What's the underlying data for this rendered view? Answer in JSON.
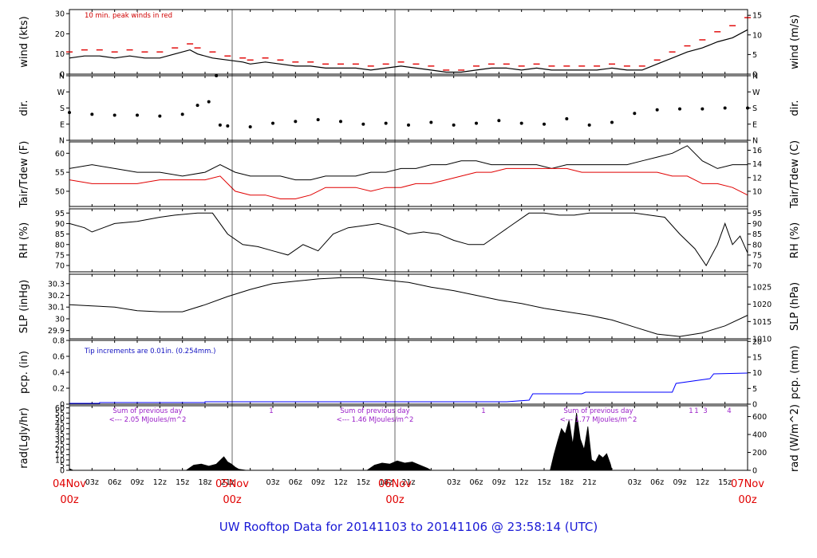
{
  "title": "UW Rooftop Data for 20141103  to  20141106 @ 23:58:14  (UTC)",
  "x_axis": {
    "hour_ticks": [
      "03z",
      "06z",
      "09z",
      "12z",
      "15z",
      "18z",
      "21z"
    ],
    "day_labels": [
      {
        "day": "04Nov",
        "time": "00z"
      },
      {
        "day": "05Nov",
        "time": "00z"
      },
      {
        "day": "06Nov",
        "time": "00z"
      },
      {
        "day": "07Nov",
        "time": "00z"
      }
    ]
  },
  "colors": {
    "primary": "#000000",
    "peak": "#e00000",
    "dewpoint": "#e00000",
    "precip": "#0000ff",
    "note_purple": "#9a1fc8",
    "title": "#1a1ad6"
  },
  "chart_data": [
    {
      "id": "wind",
      "type": "line",
      "ylabel": "wind (kts)",
      "ylabel_right": "wind (m/s)",
      "ylim": [
        0,
        32
      ],
      "yticks": [
        0,
        10,
        20,
        30
      ],
      "right_ylim": [
        0,
        16.46
      ],
      "right_yticks": [
        0,
        5,
        10,
        15
      ],
      "annotation": "10 min. peak winds in red",
      "x_hours": [
        0,
        2,
        4,
        6,
        8,
        10,
        12,
        14,
        16,
        17,
        19,
        21,
        23,
        24,
        26,
        28,
        30,
        32,
        34,
        36,
        38,
        40,
        42,
        44,
        46,
        48,
        50,
        52,
        54,
        56,
        58,
        60,
        62,
        64,
        66,
        68,
        70,
        72,
        74,
        76,
        78,
        80,
        82,
        84,
        86,
        88,
        90
      ],
      "series": [
        {
          "name": "",
          "values": [
            8,
            9,
            9,
            8,
            9,
            8,
            8,
            10,
            12,
            10,
            8,
            7,
            6,
            5,
            6,
            5,
            4,
            4,
            3,
            3,
            3,
            2,
            3,
            4,
            3,
            2,
            1,
            1,
            2,
            3,
            3,
            2,
            3,
            2,
            2,
            2,
            2,
            3,
            2,
            2,
            5,
            8,
            11,
            13,
            16,
            18,
            22
          ]
        },
        {
          "name": "",
          "values": [
            11,
            12,
            12,
            11,
            12,
            11,
            11,
            13,
            15,
            13,
            11,
            9,
            8,
            7,
            8,
            7,
            6,
            6,
            5,
            5,
            5,
            4,
            5,
            6,
            5,
            4,
            2,
            2,
            4,
            5,
            5,
            4,
            5,
            4,
            4,
            4,
            4,
            5,
            4,
            4,
            7,
            11,
            14,
            17,
            21,
            24,
            28
          ]
        }
      ]
    },
    {
      "id": "dir",
      "type": "scatter",
      "ylabel": "dir.",
      "ylabel_right": "dir.",
      "ylim": [
        0,
        360
      ],
      "ytick_labels": [
        "N",
        "E",
        "S",
        "W",
        "N"
      ],
      "ytick_values": [
        0,
        90,
        180,
        270,
        360
      ],
      "x_hours": [
        0,
        3,
        6,
        9,
        12,
        15,
        17,
        18.5,
        19.5,
        20,
        21,
        24,
        27,
        30,
        33,
        36,
        39,
        42,
        45,
        48,
        51,
        54,
        57,
        60,
        63,
        66,
        69,
        72,
        75,
        78,
        81,
        84,
        87,
        90
      ],
      "values": [
        155,
        145,
        140,
        140,
        135,
        145,
        195,
        215,
        360,
        85,
        80,
        75,
        95,
        105,
        115,
        105,
        90,
        95,
        85,
        100,
        85,
        95,
        110,
        95,
        90,
        120,
        85,
        100,
        150,
        170,
        175,
        175,
        180,
        180
      ]
    },
    {
      "id": "temp",
      "type": "line",
      "ylabel": "Tair/Tdew (F)",
      "ylabel_right": "Tair/Tdew (C)",
      "ylim": [
        46,
        63
      ],
      "yticks": [
        50,
        55,
        60
      ],
      "right_ylim": [
        7.78,
        17.22
      ],
      "right_yticks": [
        10,
        12,
        14,
        16
      ],
      "x_hours": [
        0,
        3,
        6,
        9,
        12,
        15,
        18,
        20,
        22,
        24,
        26,
        28,
        30,
        32,
        34,
        36,
        38,
        40,
        42,
        44,
        46,
        48,
        50,
        52,
        54,
        56,
        58,
        60,
        62,
        64,
        66,
        68,
        70,
        72,
        74,
        76,
        78,
        80,
        82,
        84,
        86,
        88,
        90
      ],
      "series": [
        {
          "name": "",
          "values": [
            56,
            57,
            56,
            55,
            55,
            54,
            55,
            57,
            55,
            54,
            54,
            54,
            53,
            53,
            54,
            54,
            54,
            55,
            55,
            56,
            56,
            57,
            57,
            58,
            58,
            57,
            57,
            57,
            57,
            56,
            57,
            57,
            57,
            57,
            57,
            58,
            59,
            60,
            62,
            58,
            56,
            57,
            57
          ]
        },
        {
          "name": "",
          "values": [
            53,
            52,
            52,
            52,
            53,
            53,
            53,
            54,
            50,
            49,
            49,
            48,
            48,
            49,
            51,
            51,
            51,
            50,
            51,
            51,
            52,
            52,
            53,
            54,
            55,
            55,
            56,
            56,
            56,
            56,
            56,
            55,
            55,
            55,
            55,
            55,
            55,
            54,
            54,
            52,
            52,
            51,
            49
          ]
        }
      ]
    },
    {
      "id": "rh",
      "type": "line",
      "ylabel": "RH (%)",
      "ylabel_right": "RH (%)",
      "ylim": [
        67,
        97
      ],
      "yticks": [
        70,
        75,
        80,
        85,
        90,
        95
      ],
      "x_hours": [
        0,
        2,
        3,
        6,
        9,
        12,
        14,
        17,
        19,
        21,
        23,
        25,
        27,
        29,
        31,
        33,
        35,
        37,
        39,
        41,
        43,
        45,
        47,
        49,
        51,
        53,
        55,
        57,
        59,
        61,
        63,
        65,
        67,
        69,
        71,
        73,
        75,
        77,
        79,
        81,
        83,
        84.5,
        86,
        87,
        88,
        89,
        90
      ],
      "values": [
        90,
        88,
        86,
        90,
        91,
        93,
        94,
        95,
        95,
        85,
        80,
        79,
        77,
        75,
        80,
        77,
        85,
        88,
        89,
        90,
        88,
        85,
        86,
        85,
        82,
        80,
        80,
        85,
        90,
        95,
        95,
        94,
        94,
        95,
        95,
        95,
        95,
        94,
        93,
        85,
        78,
        70,
        80,
        90,
        80,
        84,
        76
      ]
    },
    {
      "id": "slp",
      "type": "line",
      "ylabel": "SLP (inHg)",
      "ylabel_right": "SLP (hPa)",
      "ylim": [
        29.83,
        30.38
      ],
      "yticks": [
        29.9,
        30.0,
        30.1,
        30.2,
        30.3
      ],
      "right_ylim": [
        1010.0,
        1028.7
      ],
      "right_yticks": [
        1010,
        1015,
        1020,
        1025
      ],
      "x_hours": [
        0,
        3,
        6,
        9,
        12,
        15,
        18,
        21,
        24,
        27,
        30,
        33,
        36,
        39,
        42,
        45,
        48,
        51,
        54,
        57,
        60,
        63,
        66,
        69,
        72,
        75,
        78,
        81,
        84,
        87,
        90
      ],
      "values": [
        30.12,
        30.11,
        30.1,
        30.07,
        30.06,
        30.06,
        30.12,
        30.19,
        30.25,
        30.3,
        30.32,
        30.34,
        30.35,
        30.35,
        30.33,
        30.31,
        30.27,
        30.24,
        30.2,
        30.16,
        30.13,
        30.09,
        30.06,
        30.03,
        29.99,
        29.93,
        29.87,
        29.85,
        29.88,
        29.94,
        30.03
      ]
    },
    {
      "id": "pcp",
      "type": "area",
      "ylabel": "pcp. (in)",
      "ylabel_right": "pcp. (mm)",
      "ylim": [
        0,
        0.8
      ],
      "yticks": [
        0.0,
        0.2,
        0.4,
        0.6,
        0.8
      ],
      "right_ylim": [
        0,
        20.32
      ],
      "right_yticks": [
        0,
        5,
        10,
        15,
        20
      ],
      "annotation": "Tip increments are 0.01in. (0.254mm.)",
      "x_hours": [
        0,
        4,
        4.01,
        18,
        18,
        58,
        61,
        61.5,
        68,
        68.5,
        80,
        80.5,
        85,
        85.5,
        90
      ],
      "values": [
        0.01,
        0.01,
        0.02,
        0.02,
        0.03,
        0.03,
        0.05,
        0.13,
        0.13,
        0.15,
        0.15,
        0.26,
        0.32,
        0.38,
        0.39
      ]
    },
    {
      "id": "rad",
      "type": "area",
      "ylabel": "rad(Lgly/hr)",
      "ylabel_right": "rad (W/m^2)",
      "ylim": [
        0,
        62
      ],
      "yticks": [
        0,
        5,
        10,
        15,
        20,
        25,
        30,
        35,
        40,
        45,
        50,
        55,
        60
      ],
      "right_ylim": [
        0,
        720.7
      ],
      "right_yticks": [
        0,
        200,
        400,
        600
      ],
      "annotations": [
        {
          "line1": "Sum of previous day",
          "line2": "<--- 2.05 MJoules/m^2"
        },
        {
          "line1": "Sum of previous day",
          "line2": "<--- 1.46 MJoules/m^2"
        },
        {
          "line1": "Sum of previous day",
          "line2": "<--- 1.77 MJoules/m^2"
        }
      ],
      "markers": [
        "1",
        "1",
        "1",
        "1",
        "3",
        "4"
      ],
      "x_hours": [
        0,
        0.5,
        15.5,
        16.5,
        17.5,
        18.5,
        19.5,
        20.5,
        21,
        21.5,
        22,
        22.5,
        23.5,
        24,
        39.5,
        40.5,
        41.5,
        42.5,
        43.5,
        44.5,
        45.5,
        46.5,
        47.5,
        48,
        63.8,
        64.3,
        64.8,
        65.3,
        65.8,
        66.3,
        66.8,
        67.3,
        67.8,
        68.3,
        68.8,
        69.3,
        69.8,
        70.3,
        70.8,
        71.3,
        71.8,
        72
      ],
      "values": [
        1.5,
        0,
        0,
        5,
        6,
        4,
        6,
        13,
        8,
        6,
        3,
        1,
        0,
        0,
        0,
        5,
        7,
        6,
        9,
        7,
        8,
        5,
        2,
        0,
        0,
        15,
        28,
        40,
        35,
        48,
        25,
        55,
        30,
        20,
        42,
        10,
        8,
        15,
        12,
        16,
        6,
        0
      ]
    }
  ]
}
